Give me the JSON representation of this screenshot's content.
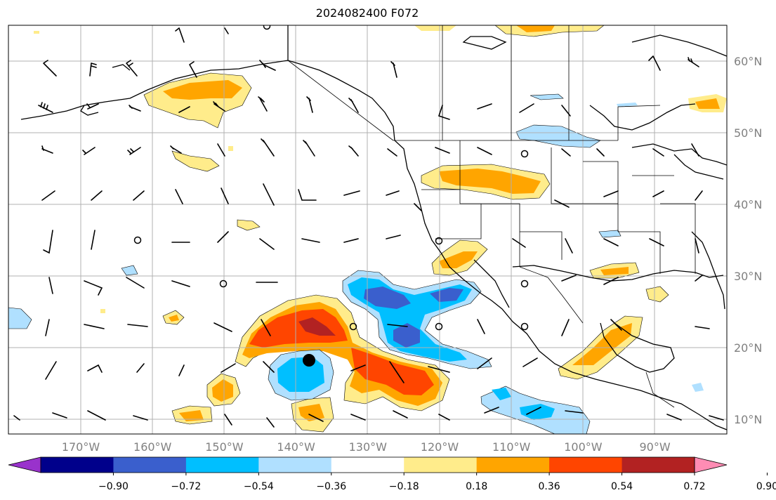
{
  "title": "2024082400 F072",
  "map": {
    "lon_labels": [
      "170°W",
      "160°W",
      "150°W",
      "140°W",
      "130°W",
      "120°W",
      "110°W",
      "100°W",
      "90°W"
    ],
    "lat_labels": [
      "60°N",
      "50°N",
      "40°N",
      "30°N",
      "20°N",
      "10°N"
    ],
    "storm_marker": "tropical-cyclone-dot"
  },
  "colorbar": {
    "colors": [
      "#9932cc",
      "#00008b",
      "#3a5fcd",
      "#00bfff",
      "#b0e0ff",
      "#ffffff",
      "#ffec8b",
      "#ffa500",
      "#ff4500",
      "#b22222",
      "#ff8cb4"
    ],
    "tick_labels": [
      "−0.90",
      "−0.72",
      "−0.54",
      "−0.36",
      "−0.18",
      "0.18",
      "0.36",
      "0.54",
      "0.72",
      "0.90"
    ]
  },
  "palette": {
    "light_yellow": "#ffec8b",
    "orange": "#ffa500",
    "red_orange": "#ff4500",
    "dark_red": "#b22222",
    "light_blue": "#b0e0ff",
    "sky_blue": "#00bfff",
    "royal_blue": "#3a5fcd"
  }
}
